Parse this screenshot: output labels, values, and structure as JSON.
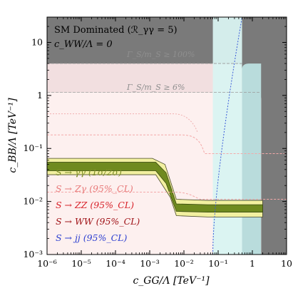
{
  "chart_data": {
    "type": "area",
    "xlabel": "c_GG/Λ  [TeV⁻¹]",
    "ylabel": "c_BB/Λ  [TeV⁻¹]",
    "x_scale": "log",
    "y_scale": "log",
    "xlim": [
      1e-06,
      10
    ],
    "ylim": [
      0.001,
      30
    ],
    "x_ticks": [
      {
        "value": 1e-06,
        "label": "10⁻⁶"
      },
      {
        "value": 1e-05,
        "label": "10⁻⁵"
      },
      {
        "value": 0.0001,
        "label": "10⁻⁴"
      },
      {
        "value": 0.001,
        "label": "10⁻³"
      },
      {
        "value": 0.01,
        "label": "10⁻²"
      },
      {
        "value": 0.1,
        "label": "10⁻¹"
      },
      {
        "value": 1,
        "label": "1"
      },
      {
        "value": 10,
        "label": "10"
      }
    ],
    "y_ticks": [
      {
        "value": 0.001,
        "label": "10⁻³"
      },
      {
        "value": 0.01,
        "label": "10⁻²"
      },
      {
        "value": 0.1,
        "label": "10⁻¹"
      },
      {
        "value": 1,
        "label": "1"
      },
      {
        "value": 10,
        "label": "10"
      }
    ],
    "annotations": {
      "scenario": "SM Dominated (ℛ_γγ = 5)",
      "cww": "c_WW/Λ = 0",
      "width_100": "Γ_S/m_S ≥ 100%",
      "width_6": "Γ_S/m_S ≥ 6%"
    },
    "legend": [
      {
        "label": "S → γγ (1σ/2σ)",
        "color": "#7f8f2a"
      },
      {
        "label": "S → Zγ (95%_CL)",
        "color": "#e87a7a"
      },
      {
        "label": "S → ZZ (95%_CL)",
        "color": "#d8222a"
      },
      {
        "label": "S → WW (95%_CL)",
        "color": "#a01318"
      },
      {
        "label": "S → jj (95%_CL)",
        "color": "#2d3fd0"
      }
    ],
    "regions": {
      "excluded_color": "#7a7a7a",
      "width_100_y": 4.0,
      "width_6_y": 1.15,
      "width_100_x": 0.5,
      "width_6_x": 1.8,
      "jj_x_min": 0.07,
      "jj_x_max": 0.5
    },
    "series": [
      {
        "name": "S → γγ (1σ)",
        "color": "#6f8a1f",
        "upper": [
          [
            1e-06,
            0.055
          ],
          [
            0.0015,
            0.055
          ],
          [
            0.003,
            0.035
          ],
          [
            0.006,
            0.009
          ],
          [
            0.05,
            0.0087
          ],
          [
            2,
            0.0087
          ]
        ],
        "lower": [
          [
            1e-06,
            0.038
          ],
          [
            0.0015,
            0.038
          ],
          [
            0.003,
            0.022
          ],
          [
            0.006,
            0.0065
          ],
          [
            0.05,
            0.0063
          ],
          [
            2,
            0.0063
          ]
        ]
      },
      {
        "name": "S → γγ (2σ)",
        "color": "#f2f0a0",
        "upper": [
          [
            1e-06,
            0.065
          ],
          [
            0.0012,
            0.065
          ],
          [
            0.0028,
            0.05
          ],
          [
            0.006,
            0.011
          ],
          [
            0.05,
            0.0105
          ],
          [
            2,
            0.0105
          ]
        ],
        "lower": [
          [
            1e-06,
            0.032
          ],
          [
            0.0015,
            0.032
          ],
          [
            0.004,
            0.012
          ],
          [
            0.006,
            0.0054
          ],
          [
            0.05,
            0.0051
          ],
          [
            2,
            0.0051
          ]
        ]
      }
    ]
  }
}
